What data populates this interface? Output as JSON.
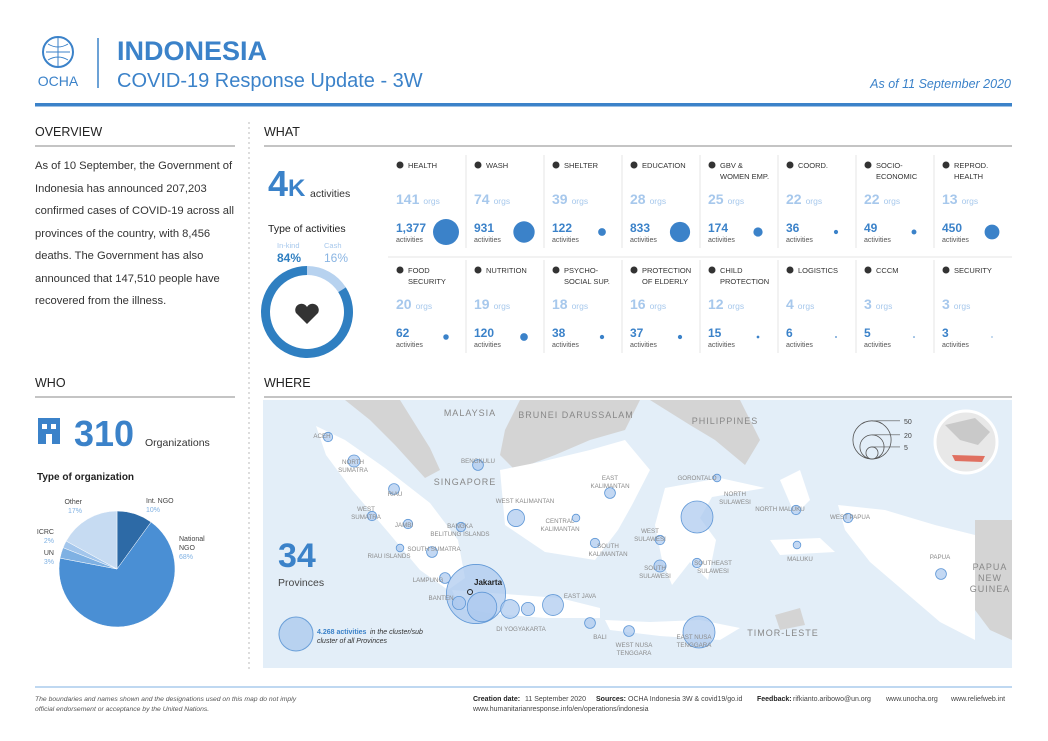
{
  "header": {
    "logo": "OCHA",
    "title": "INDONESIA",
    "subtitle": "COVID-19 Response Update - 3W",
    "date": "As of 11 September 2020"
  },
  "overview": {
    "heading": "OVERVIEW",
    "text": "As of 10 September, the Government of Indonesia has announced 207,203 confirmed cases of COVID-19 across all provinces of the country, with 8,456 deaths. The Government has also announced that 147,510 people have recovered from the illness."
  },
  "what": {
    "heading": "WHAT",
    "total_value": 4,
    "total_unit": "K",
    "total_label": "activities",
    "type_heading": "Type of activities",
    "types": [
      {
        "label": "In-kind",
        "value": 84,
        "value_label": "84%",
        "color": "#2f7fc1"
      },
      {
        "label": "Cash",
        "value": 16,
        "value_label": "16%",
        "color": "#b7d2ef"
      }
    ],
    "orgs_unit": "orgs",
    "activities_unit": "activities",
    "sectors": [
      {
        "name": [
          "HEALTH"
        ],
        "orgs": 141,
        "activities": 1377,
        "activities_label": "1,377"
      },
      {
        "name": [
          "WASH"
        ],
        "orgs": 74,
        "activities": 931,
        "activities_label": "931"
      },
      {
        "name": [
          "SHELTER"
        ],
        "orgs": 39,
        "activities": 122,
        "activities_label": "122"
      },
      {
        "name": [
          "EDUCATION"
        ],
        "orgs": 28,
        "activities": 833,
        "activities_label": "833"
      },
      {
        "name": [
          "GBV &",
          "WOMEN EMP."
        ],
        "orgs": 25,
        "activities": 174,
        "activities_label": "174"
      },
      {
        "name": [
          "COORD."
        ],
        "orgs": 22,
        "activities": 36,
        "activities_label": "36"
      },
      {
        "name": [
          "SOCIO-",
          "ECONOMIC"
        ],
        "orgs": 22,
        "activities": 49,
        "activities_label": "49"
      },
      {
        "name": [
          "REPROD.",
          "HEALTH"
        ],
        "orgs": 13,
        "activities": 450,
        "activities_label": "450"
      },
      {
        "name": [
          "FOOD",
          "SECURITY"
        ],
        "orgs": 20,
        "activities": 62,
        "activities_label": "62"
      },
      {
        "name": [
          "NUTRITION"
        ],
        "orgs": 19,
        "activities": 120,
        "activities_label": "120"
      },
      {
        "name": [
          "PSYCHO-",
          "SOCIAL SUP."
        ],
        "orgs": 18,
        "activities": 38,
        "activities_label": "38"
      },
      {
        "name": [
          "PROTECTION",
          "OF ELDERLY"
        ],
        "orgs": 16,
        "activities": 37,
        "activities_label": "37"
      },
      {
        "name": [
          "CHILD",
          "PROTECTION"
        ],
        "orgs": 12,
        "activities": 15,
        "activities_label": "15"
      },
      {
        "name": [
          "LOGISTICS"
        ],
        "orgs": 4,
        "activities": 6,
        "activities_label": "6"
      },
      {
        "name": [
          "CCCM"
        ],
        "orgs": 3,
        "activities": 5,
        "activities_label": "5"
      },
      {
        "name": [
          "SECURITY"
        ],
        "orgs": 3,
        "activities": 3,
        "activities_label": "3"
      }
    ]
  },
  "who": {
    "heading": "WHO",
    "total": 310,
    "total_label": "Organizations",
    "type_heading": "Type of organization",
    "types": [
      {
        "label": [
          "Int. NGO"
        ],
        "value": 10,
        "value_label": "10%",
        "color": "#2d6aa6"
      },
      {
        "label": [
          "National",
          "NGO"
        ],
        "value": 68,
        "value_label": "68%",
        "color": "#4a8fd4"
      },
      {
        "label": [
          "UN"
        ],
        "value": 3,
        "value_label": "3%",
        "color": "#7fb1e3"
      },
      {
        "label": [
          "ICRC"
        ],
        "value": 2,
        "value_label": "2%",
        "color": "#a3c6ec"
      },
      {
        "label": [
          "Other"
        ],
        "value": 17,
        "value_label": "17%",
        "color": "#c6dbf2"
      }
    ]
  },
  "where": {
    "heading": "WHERE",
    "provinces": 34,
    "provinces_label": "Provinces",
    "note_strong": "4.268 activities",
    "note_rest": [
      "in the cluster/sub",
      "cluster of all Provinces"
    ],
    "size_legend": [
      50,
      20,
      5
    ],
    "countries": [
      [
        "MALAYSIA"
      ],
      [
        "BRUNEI DARUSSALAM"
      ],
      [
        "PHILIPPINES"
      ],
      [
        "SINGAPORE"
      ],
      [
        "TIMOR-LESTE"
      ],
      [
        "PAPUA",
        "NEW",
        "GUINEA"
      ]
    ],
    "capital": "Jakarta",
    "province_labels": [
      [
        "ACEH"
      ],
      [
        "NORTH",
        "SUMATRA"
      ],
      [
        "RIAU"
      ],
      [
        "WEST",
        "SUMATRA"
      ],
      [
        "JAMBI"
      ],
      [
        "BENGKULU"
      ],
      [
        "RIAU ISLANDS"
      ],
      [
        "BANGKA",
        "BELITUNG ISLANDS"
      ],
      [
        "SOUTH SUMATRA"
      ],
      [
        "LAMPUNG"
      ],
      [
        "BANTEN"
      ],
      [
        "WEST KALIMANTAN"
      ],
      [
        "CENTRAL",
        "KALIMANTAN"
      ],
      [
        "SOUTH",
        "KALIMANTAN"
      ],
      [
        "EAST",
        "KALIMANTAN"
      ],
      [
        "GORONTALO"
      ],
      [
        "NORTH",
        "SULAWESI"
      ],
      [
        "WEST",
        "SULAWESI"
      ],
      [
        "SOUTH",
        "SULAWESI"
      ],
      [
        "SOUTHEAST",
        "SULAWESI"
      ],
      [
        "NORTH MALUKU"
      ],
      [
        "MALUKU"
      ],
      [
        "WEST PAPUA"
      ],
      [
        "PAPUA"
      ],
      [
        "DI YOGYAKARTA"
      ],
      [
        "EAST JAVA"
      ],
      [
        "BALI"
      ],
      [
        "WEST NUSA",
        "TENGGARA"
      ],
      [
        "EAST NUSA",
        "TENGGARA"
      ]
    ],
    "bubbles": [
      3,
      5,
      4,
      3,
      3,
      4,
      2,
      4,
      3,
      4,
      120,
      6,
      30,
      12,
      6,
      15,
      4,
      4,
      35,
      10,
      2,
      3,
      4,
      2,
      35,
      3,
      5,
      3,
      3,
      2,
      3,
      4
    ]
  },
  "footer": {
    "disclaimer": [
      "The boundaries and names shown and the designations used on this map do not imply",
      "official endorsement or acceptance by the United Nations."
    ],
    "creation_label": "Creation date:",
    "creation_value": "11 September 2020",
    "sources_label": "Sources:",
    "sources_value": "OCHA Indonesia 3W & covid19/go.id",
    "feedback_label": "Feedback:",
    "feedback_value": "rifkianto.aribowo@un.org",
    "links": [
      "www.unocha.org",
      "www.reliefweb.int"
    ],
    "url": "www.humanitarianresponse.info/en/operations/indonesia"
  }
}
